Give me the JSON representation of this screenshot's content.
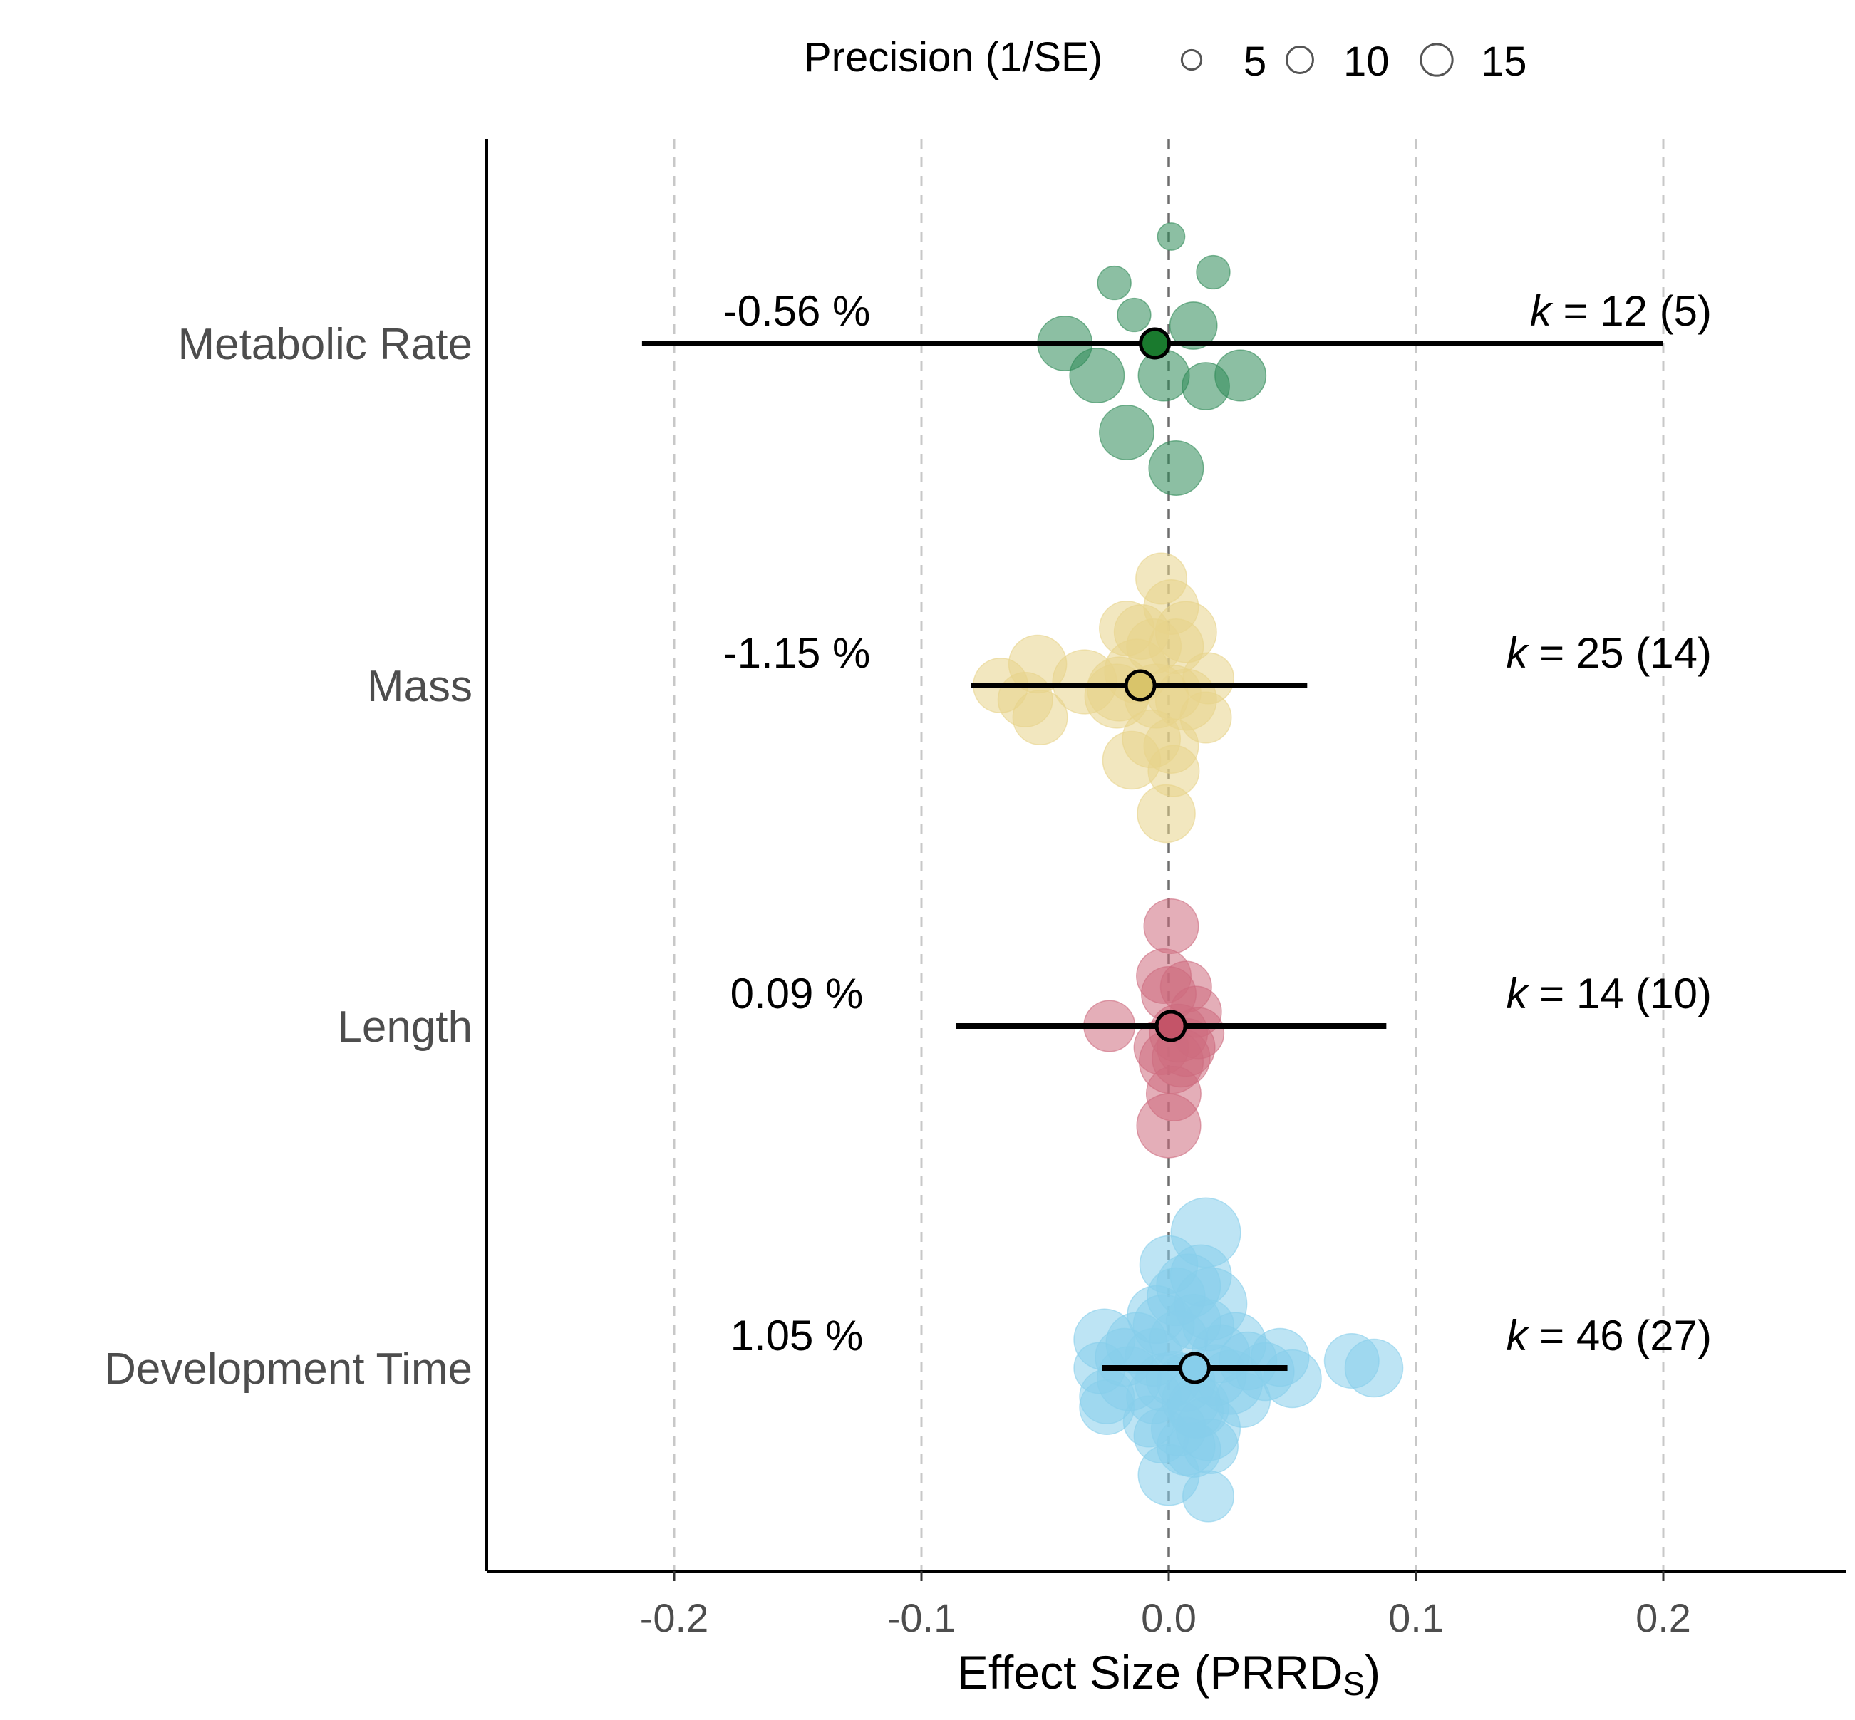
{
  "chart_data": {
    "type": "scatter",
    "subtype": "orchard-plot",
    "xlabel_main": "Effect Size (PRRD",
    "xlabel_sub": "S",
    "xlabel_close": ")",
    "xlim": [
      -0.275,
      0.275
    ],
    "x_ticks": [
      -0.2,
      -0.1,
      0.0,
      0.1,
      0.2
    ],
    "x_tick_labels": [
      "-0.2",
      "-0.1",
      "0.0",
      "0.1",
      "0.2"
    ],
    "vertical_reference": 0.0,
    "grid": "dashed vertical at ticks",
    "legend": {
      "title": "Precision (1/SE)",
      "position": "top",
      "entries": [
        {
          "label": "5",
          "value": 5
        },
        {
          "label": "10",
          "value": 10
        },
        {
          "label": "15",
          "value": 15
        }
      ]
    },
    "categories": [
      "Metabolic Rate",
      "Mass",
      "Length",
      "Development Time"
    ],
    "series": [
      {
        "category": "Metabolic Rate",
        "color": "#2e8b57",
        "estimate_color": "#1a7a2e",
        "estimate": -0.0056,
        "ci": [
          -0.213,
          0.2
        ],
        "pct_label": "-0.56 %",
        "k_label": "k",
        "k_value": "= 12",
        "k_paren": "(5)",
        "points": [
          {
            "x": 0.001,
            "jitter": -0.3,
            "precision": 2
          },
          {
            "x": -0.022,
            "jitter": -0.17,
            "precision": 3
          },
          {
            "x": 0.018,
            "jitter": -0.2,
            "precision": 3
          },
          {
            "x": -0.014,
            "jitter": -0.08,
            "precision": 3
          },
          {
            "x": 0.01,
            "jitter": -0.05,
            "precision": 6
          },
          {
            "x": -0.042,
            "jitter": 0.0,
            "precision": 8
          },
          {
            "x": -0.002,
            "jitter": 0.09,
            "precision": 7
          },
          {
            "x": -0.029,
            "jitter": 0.09,
            "precision": 8
          },
          {
            "x": 0.015,
            "jitter": 0.12,
            "precision": 6
          },
          {
            "x": 0.029,
            "jitter": 0.09,
            "precision": 7
          },
          {
            "x": -0.017,
            "jitter": 0.25,
            "precision": 8
          },
          {
            "x": 0.003,
            "jitter": 0.35,
            "precision": 8
          }
        ]
      },
      {
        "category": "Mass",
        "color": "#e8d48b",
        "estimate_color": "#d9c46a",
        "estimate": -0.0115,
        "ci": [
          -0.08,
          0.056
        ],
        "pct_label": "-1.15 %",
        "k_label": "k",
        "k_value": "= 25",
        "k_paren": "(14)",
        "points": [
          {
            "x": -0.003,
            "jitter": -0.3,
            "precision": 7
          },
          {
            "x": 0.001,
            "jitter": -0.22,
            "precision": 8
          },
          {
            "x": -0.017,
            "jitter": -0.16,
            "precision": 8
          },
          {
            "x": -0.011,
            "jitter": -0.15,
            "precision": 8
          },
          {
            "x": 0.007,
            "jitter": -0.15,
            "precision": 10
          },
          {
            "x": -0.006,
            "jitter": -0.11,
            "precision": 8
          },
          {
            "x": 0.003,
            "jitter": -0.11,
            "precision": 8
          },
          {
            "x": -0.053,
            "jitter": -0.06,
            "precision": 9
          },
          {
            "x": -0.013,
            "jitter": -0.04,
            "precision": 11
          },
          {
            "x": -0.068,
            "jitter": 0.0,
            "precision": 8
          },
          {
            "x": -0.034,
            "jitter": -0.01,
            "precision": 11
          },
          {
            "x": -0.02,
            "jitter": 0.01,
            "precision": 11
          },
          {
            "x": 0.016,
            "jitter": -0.02,
            "precision": 7
          },
          {
            "x": -0.021,
            "jitter": 0.03,
            "precision": 11
          },
          {
            "x": -0.005,
            "jitter": 0.03,
            "precision": 11
          },
          {
            "x": 0.007,
            "jitter": 0.04,
            "precision": 10
          },
          {
            "x": 0.002,
            "jitter": 0.02,
            "precision": 8
          },
          {
            "x": -0.058,
            "jitter": 0.04,
            "precision": 8
          },
          {
            "x": -0.052,
            "jitter": 0.09,
            "precision": 8
          },
          {
            "x": 0.015,
            "jitter": 0.09,
            "precision": 7
          },
          {
            "x": -0.007,
            "jitter": 0.15,
            "precision": 9
          },
          {
            "x": 0.001,
            "jitter": 0.17,
            "precision": 8
          },
          {
            "x": -0.015,
            "jitter": 0.21,
            "precision": 9
          },
          {
            "x": 0.002,
            "jitter": 0.24,
            "precision": 7
          },
          {
            "x": -0.001,
            "jitter": 0.36,
            "precision": 9
          }
        ]
      },
      {
        "category": "Length",
        "color": "#cd6b7e",
        "estimate_color": "#c45468",
        "estimate": 0.0009,
        "ci": [
          -0.086,
          0.088
        ],
        "pct_label": "0.09 %",
        "k_label": "k",
        "k_value": "= 14",
        "k_paren": "(10)",
        "points": [
          {
            "x": 0.001,
            "jitter": -0.28,
            "precision": 8
          },
          {
            "x": -0.002,
            "jitter": -0.14,
            "precision": 8
          },
          {
            "x": 0.007,
            "jitter": -0.11,
            "precision": 7
          },
          {
            "x": 0.0,
            "jitter": -0.09,
            "precision": 8
          },
          {
            "x": 0.011,
            "jitter": -0.04,
            "precision": 7
          },
          {
            "x": -0.024,
            "jitter": 0.0,
            "precision": 7
          },
          {
            "x": 0.004,
            "jitter": 0.02,
            "precision": 9
          },
          {
            "x": 0.012,
            "jitter": 0.02,
            "precision": 7
          },
          {
            "x": -0.003,
            "jitter": 0.06,
            "precision": 8
          },
          {
            "x": 0.007,
            "jitter": 0.06,
            "precision": 9
          },
          {
            "x": 0.005,
            "jitter": 0.09,
            "precision": 9
          },
          {
            "x": 0.001,
            "jitter": 0.1,
            "precision": 11
          },
          {
            "x": 0.002,
            "jitter": 0.19,
            "precision": 8
          },
          {
            "x": 0.0,
            "jitter": 0.28,
            "precision": 11
          }
        ]
      },
      {
        "category": "Development Time",
        "color": "#87ceeb",
        "estimate_color": "#87ceeb",
        "estimate": 0.0105,
        "ci": [
          -0.027,
          0.048
        ],
        "pct_label": "1.05 %",
        "k_label": "k",
        "k_value": "= 46",
        "k_paren": "(27)",
        "points": [
          {
            "x": 0.015,
            "jitter": -0.38,
            "precision": 13
          },
          {
            "x": 0.0,
            "jitter": -0.29,
            "precision": 9
          },
          {
            "x": 0.013,
            "jitter": -0.26,
            "precision": 10
          },
          {
            "x": 0.008,
            "jitter": -0.23,
            "precision": 11
          },
          {
            "x": 0.017,
            "jitter": -0.18,
            "precision": 14
          },
          {
            "x": 0.003,
            "jitter": -0.2,
            "precision": 9
          },
          {
            "x": -0.005,
            "jitter": -0.15,
            "precision": 9
          },
          {
            "x": -0.002,
            "jitter": -0.12,
            "precision": 10
          },
          {
            "x": 0.01,
            "jitter": -0.13,
            "precision": 8
          },
          {
            "x": 0.016,
            "jitter": -0.12,
            "precision": 7
          },
          {
            "x": -0.026,
            "jitter": -0.08,
            "precision": 10
          },
          {
            "x": -0.013,
            "jitter": -0.07,
            "precision": 10
          },
          {
            "x": 0.004,
            "jitter": -0.08,
            "precision": 9
          },
          {
            "x": 0.027,
            "jitter": -0.07,
            "precision": 10
          },
          {
            "x": 0.021,
            "jitter": -0.04,
            "precision": 9
          },
          {
            "x": -0.018,
            "jitter": -0.03,
            "precision": 9
          },
          {
            "x": -0.006,
            "jitter": -0.03,
            "precision": 9
          },
          {
            "x": 0.032,
            "jitter": -0.02,
            "precision": 9
          },
          {
            "x": 0.045,
            "jitter": -0.03,
            "precision": 9
          },
          {
            "x": 0.074,
            "jitter": -0.02,
            "precision": 8
          },
          {
            "x": -0.028,
            "jitter": 0.0,
            "precision": 7
          },
          {
            "x": 0.039,
            "jitter": 0.01,
            "precision": 9
          },
          {
            "x": 0.083,
            "jitter": 0.0,
            "precision": 9
          },
          {
            "x": -0.016,
            "jitter": 0.03,
            "precision": 11
          },
          {
            "x": 0.002,
            "jitter": 0.03,
            "precision": 8
          },
          {
            "x": 0.019,
            "jitter": 0.02,
            "precision": 10
          },
          {
            "x": 0.025,
            "jitter": 0.04,
            "precision": 11
          },
          {
            "x": 0.05,
            "jitter": 0.03,
            "precision": 9
          },
          {
            "x": -0.002,
            "jitter": 0.04,
            "precision": 9
          },
          {
            "x": 0.007,
            "jitter": 0.04,
            "precision": 9
          },
          {
            "x": -0.025,
            "jitter": 0.08,
            "precision": 8
          },
          {
            "x": -0.006,
            "jitter": 0.08,
            "precision": 8
          },
          {
            "x": 0.009,
            "jitter": 0.09,
            "precision": 9
          },
          {
            "x": 0.03,
            "jitter": 0.09,
            "precision": 8
          },
          {
            "x": -0.025,
            "jitter": 0.11,
            "precision": 8
          },
          {
            "x": 0.012,
            "jitter": 0.11,
            "precision": 10
          },
          {
            "x": -0.008,
            "jitter": 0.15,
            "precision": 7
          },
          {
            "x": 0.016,
            "jitter": 0.17,
            "precision": 11
          },
          {
            "x": 0.004,
            "jitter": 0.17,
            "precision": 8
          },
          {
            "x": -0.003,
            "jitter": 0.19,
            "precision": 8
          },
          {
            "x": 0.007,
            "jitter": 0.22,
            "precision": 9
          },
          {
            "x": 0.01,
            "jitter": 0.23,
            "precision": 8
          },
          {
            "x": 0.017,
            "jitter": 0.22,
            "precision": 8
          },
          {
            "x": 0.0,
            "jitter": 0.3,
            "precision": 10
          },
          {
            "x": 0.016,
            "jitter": 0.36,
            "precision": 7
          },
          {
            "x": 0.011,
            "jitter": 0.12,
            "precision": 8
          }
        ]
      }
    ]
  }
}
